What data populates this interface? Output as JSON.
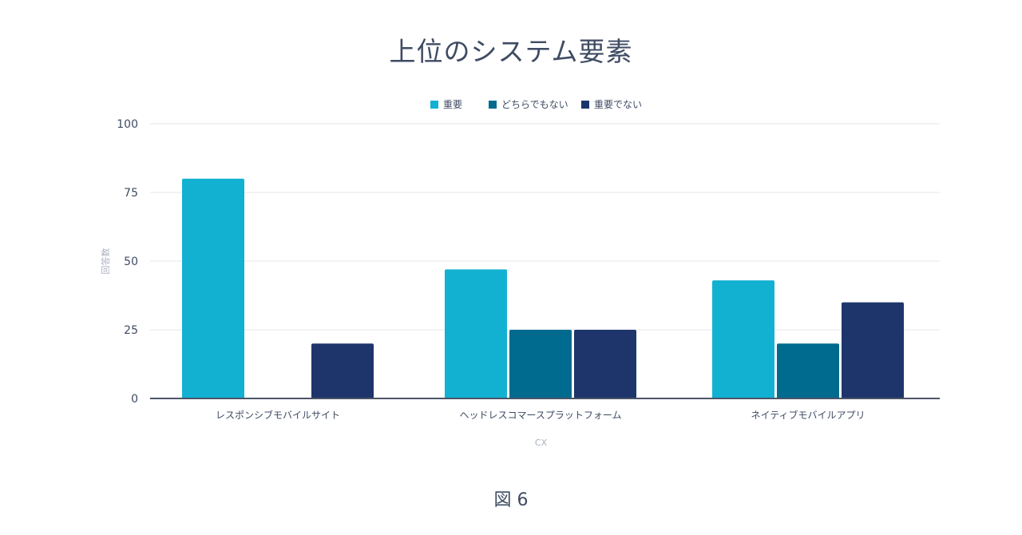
{
  "figure_caption": "図 6",
  "chart_data": {
    "type": "bar",
    "title": "上位のシステム要素",
    "xlabel": "CX",
    "ylabel": "回答数",
    "ylim": [
      0,
      100
    ],
    "yticks": [
      0,
      25,
      50,
      75,
      100
    ],
    "categories": [
      "レスポンシブモバイルサイト",
      "ヘッドレスコマースプラットフォーム",
      "ネイティブモバイルアプリ"
    ],
    "series": [
      {
        "name": "重要",
        "color": "#12b1d1",
        "values": [
          80,
          47,
          43
        ]
      },
      {
        "name": "どちらでもない",
        "color": "#006b8e",
        "values": [
          0,
          25,
          20
        ]
      },
      {
        "name": "重要でない",
        "color": "#1d356b",
        "values": [
          20,
          25,
          35
        ]
      }
    ],
    "legend_position": "top-center",
    "grid": true
  }
}
